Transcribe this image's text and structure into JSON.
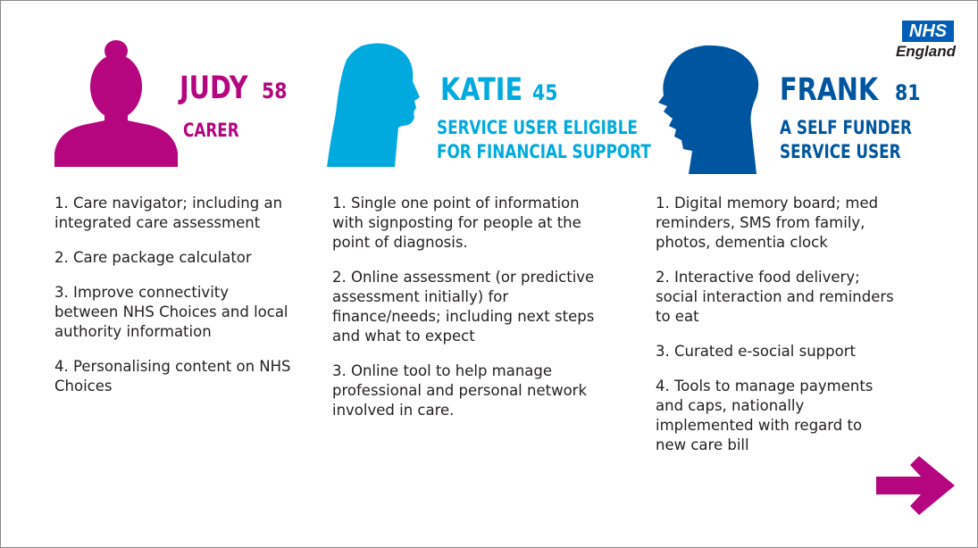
{
  "logo": {
    "top": "NHS",
    "bottom": "England"
  },
  "colors": {
    "judy": "#b5067f",
    "katie": "#00aadf",
    "frank": "#0055a0",
    "arrow": "#b5067f",
    "nhs_blue": "#005eb8"
  },
  "personas": [
    {
      "name": "JUDY",
      "age": "58",
      "role": [
        "CARER"
      ],
      "points": [
        "1. Care navigator; including an\nintegrated care assessment",
        "2. Care package calculator",
        "3. Improve connectivity\nbetween NHS Choices and local\nauthority information",
        "4. Personalising content on NHS\nChoices"
      ]
    },
    {
      "name": "KATIE",
      "age": "45",
      "role": [
        "SERVICE USER ELIGIBLE",
        "FOR FINANCIAL SUPPORT"
      ],
      "points": [
        "1. Single one point of information\nwith signposting for people at the\npoint of diagnosis.",
        "2. Online assessment (or predictive\nassessment initially) for\nfinance/needs; including next steps\nand what to expect",
        "3. Online tool to help manage\nprofessional and personal network\ninvolved in care."
      ]
    },
    {
      "name": "FRANK",
      "age": "81",
      "role": [
        "A SELF FUNDER",
        "SERVICE USER"
      ],
      "points": [
        "1. Digital memory board; med\nreminders, SMS from family,\nphotos, dementia clock",
        "2. Interactive food delivery;\nsocial interaction and reminders\nto eat",
        "3. Curated e-social support",
        "4.  Tools to manage payments\nand caps, nationally\nimplemented with regard to\nnew care bill"
      ]
    }
  ],
  "icons": {
    "judy_silhouette": "female-bun-head-icon",
    "katie_silhouette": "female-profile-head-icon",
    "frank_silhouette": "elderly-male-profile-head-icon",
    "next": "right-arrow-icon"
  }
}
